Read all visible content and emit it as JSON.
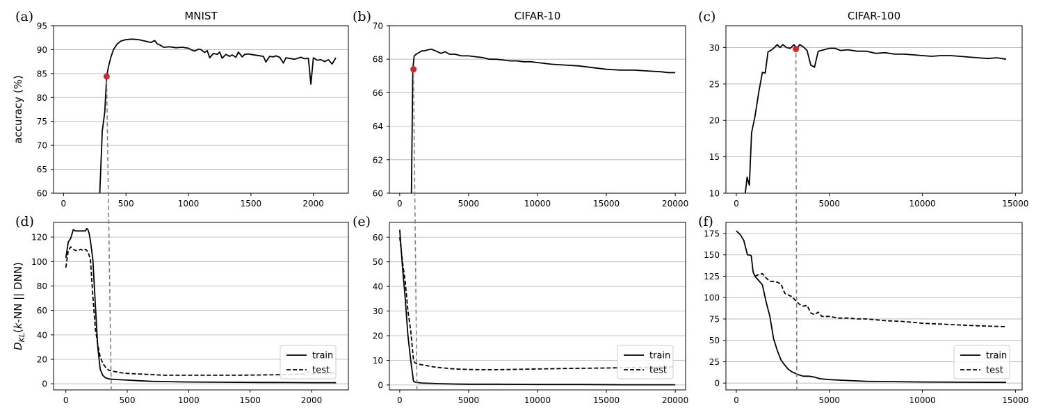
{
  "chart_data": [
    {
      "id": "a",
      "panel_label": "(a)",
      "type": "line",
      "title": "MNIST",
      "xlabel": "",
      "ylabel": "accuracy (%)",
      "xlim": [
        -80,
        2280
      ],
      "ylim": [
        60,
        95
      ],
      "xticks": [
        0,
        500,
        1000,
        1500,
        2000
      ],
      "yticks": [
        60,
        65,
        70,
        75,
        80,
        85,
        90,
        95
      ],
      "grid": "y",
      "series": [
        {
          "name": "accuracy",
          "style": "solid",
          "x": [
            290,
            310,
            330,
            345,
            360,
            380,
            400,
            430,
            460,
            500,
            550,
            600,
            650,
            700,
            730,
            750,
            770,
            800,
            850,
            900,
            950,
            1000,
            1020,
            1050,
            1080,
            1100,
            1130,
            1150,
            1170,
            1200,
            1230,
            1250,
            1270,
            1300,
            1330,
            1350,
            1380,
            1400,
            1430,
            1450,
            1480,
            1500,
            1550,
            1600,
            1620,
            1650,
            1680,
            1700,
            1730,
            1760,
            1780,
            1800,
            1850,
            1900,
            1930,
            1960,
            1980,
            2000,
            2030,
            2060,
            2090,
            2120,
            2150,
            2180
          ],
          "y": [
            60,
            73,
            77,
            84.4,
            86.5,
            88.5,
            90,
            91.2,
            91.8,
            92.1,
            92.2,
            92.1,
            91.8,
            91.5,
            91.9,
            91.2,
            91.0,
            90.5,
            90.6,
            90.4,
            90.5,
            90.3,
            90.0,
            89.7,
            90.1,
            90.0,
            89.4,
            89.8,
            88.3,
            89.2,
            89.0,
            89.5,
            88.2,
            89.0,
            88.6,
            88.9,
            88.4,
            89.5,
            88.5,
            89.0,
            89.1,
            89.0,
            88.8,
            88.6,
            87.4,
            88.6,
            88.5,
            88.7,
            88.4,
            87.2,
            88.3,
            88.2,
            88.0,
            88.4,
            88.1,
            88.2,
            82.8,
            88.3,
            87.8,
            87.9,
            87.5,
            87.9,
            87.0,
            88.3
          ]
        }
      ],
      "marker": {
        "x": 345,
        "y": 84.4,
        "color": "#d62728"
      },
      "vline_x": 350
    },
    {
      "id": "b",
      "panel_label": "(b)",
      "type": "line",
      "title": "CIFAR-10",
      "xlabel": "",
      "ylabel": "",
      "xlim": [
        -750,
        20750
      ],
      "ylim": [
        60,
        70
      ],
      "xticks": [
        0,
        5000,
        10000,
        15000,
        20000
      ],
      "yticks": [
        60,
        62,
        64,
        66,
        68,
        70
      ],
      "grid": "y",
      "series": [
        {
          "name": "accuracy",
          "style": "solid",
          "x": [
            850,
            950,
            1050,
            1200,
            1400,
            1600,
            1800,
            2000,
            2300,
            2600,
            3000,
            3300,
            3600,
            4000,
            4500,
            5000,
            5500,
            6000,
            6500,
            7000,
            7500,
            8000,
            8500,
            9000,
            9500,
            10000,
            11000,
            12000,
            13000,
            14000,
            15000,
            16000,
            17000,
            18000,
            19000,
            19500,
            20000
          ],
          "y": [
            60,
            67.4,
            68.2,
            68.3,
            68.4,
            68.5,
            68.5,
            68.55,
            68.6,
            68.5,
            68.35,
            68.45,
            68.3,
            68.3,
            68.2,
            68.2,
            68.15,
            68.1,
            68.0,
            68.0,
            67.95,
            67.9,
            67.9,
            67.85,
            67.85,
            67.8,
            67.7,
            67.65,
            67.6,
            67.5,
            67.4,
            67.35,
            67.35,
            67.3,
            67.25,
            67.2,
            67.2
          ]
        }
      ],
      "marker": {
        "x": 1000,
        "y": 67.4,
        "color": "#d62728"
      },
      "vline_x": 1250
    },
    {
      "id": "c",
      "panel_label": "(c)",
      "type": "line",
      "title": "CIFAR-100",
      "xlabel": "",
      "ylabel": "",
      "xlim": [
        -560,
        15360
      ],
      "ylim": [
        10,
        33
      ],
      "xticks": [
        0,
        5000,
        10000,
        15000
      ],
      "yticks": [
        10,
        15,
        20,
        25,
        30
      ],
      "grid": "y",
      "series": [
        {
          "name": "accuracy",
          "style": "solid",
          "x": [
            480,
            580,
            700,
            820,
            1000,
            1200,
            1400,
            1550,
            1700,
            1850,
            2000,
            2200,
            2350,
            2500,
            2700,
            2900,
            3100,
            3250,
            3400,
            3600,
            3800,
            4000,
            4200,
            4400,
            4700,
            5000,
            5300,
            5600,
            6000,
            6500,
            7000,
            7500,
            8000,
            8500,
            9000,
            9500,
            10000,
            10500,
            11000,
            11500,
            12000,
            12500,
            13000,
            13500,
            14000,
            14500
          ],
          "y": [
            10,
            12.2,
            11.1,
            18.3,
            20.5,
            23.8,
            26.6,
            26.5,
            29.4,
            29.6,
            29.9,
            30.4,
            30.0,
            30.4,
            30.0,
            29.9,
            30.4,
            29.8,
            30.4,
            30.1,
            29.6,
            27.6,
            27.3,
            29.5,
            29.7,
            29.9,
            29.9,
            29.6,
            29.7,
            29.5,
            29.5,
            29.2,
            29.3,
            29.1,
            29.1,
            29.0,
            28.9,
            28.8,
            28.9,
            28.9,
            28.8,
            28.7,
            28.6,
            28.5,
            28.6,
            28.4
          ]
        }
      ],
      "marker": {
        "x": 3200,
        "y": 29.8,
        "color": "#d62728"
      },
      "vline_x": 3250
    },
    {
      "id": "d",
      "panel_label": "(d)",
      "type": "line",
      "title": "",
      "xlabel": "",
      "ylabel": "D_KL(k-NN || DNN)",
      "ylabel_parts": {
        "d": "D",
        "sub": "KL",
        "open": "(",
        "k": "k",
        "rest": "-NN || DNN)"
      },
      "xlim": [
        -100,
        2300
      ],
      "ylim": [
        -5,
        132
      ],
      "xticks": [
        0,
        500,
        1000,
        1500,
        2000
      ],
      "yticks": [
        0,
        20,
        40,
        60,
        80,
        100,
        120
      ],
      "grid": "y",
      "legend": {
        "position": "lower-right",
        "entries": [
          "train",
          "test"
        ]
      },
      "series": [
        {
          "name": "train",
          "style": "solid",
          "x": [
            0,
            20,
            40,
            60,
            80,
            100,
            120,
            140,
            160,
            170,
            180,
            190,
            200,
            220,
            240,
            260,
            280,
            300,
            320,
            350,
            400,
            500,
            600,
            700,
            800,
            900,
            1000,
            1200,
            1400,
            1600,
            1800,
            2000,
            2200
          ],
          "y": [
            103,
            116,
            119,
            126,
            125,
            125,
            125,
            125,
            125,
            127,
            126,
            123,
            117,
            102,
            65,
            30,
            12,
            7,
            5,
            4,
            3.5,
            3,
            2.5,
            2,
            1.8,
            1.6,
            1.5,
            1.3,
            1.2,
            1.1,
            1.0,
            0.9,
            0.9
          ]
        },
        {
          "name": "test",
          "style": "dashed",
          "x": [
            0,
            20,
            40,
            60,
            80,
            100,
            120,
            140,
            160,
            180,
            200,
            220,
            240,
            260,
            280,
            300,
            320,
            350,
            400,
            450,
            500,
            600,
            700,
            800,
            900,
            1000,
            1100,
            1200,
            1400,
            1600,
            1800,
            1950,
            1980,
            2000,
            2200
          ],
          "y": [
            95,
            109,
            112,
            110,
            109,
            109,
            110,
            109,
            110,
            108,
            102,
            72,
            45,
            32,
            22,
            17,
            14,
            11,
            10,
            9,
            8.5,
            8,
            7.5,
            7,
            7,
            7,
            7,
            7,
            7,
            7.2,
            7.5,
            8,
            10,
            8,
            9
          ]
        }
      ],
      "vline_x": 370
    },
    {
      "id": "e",
      "panel_label": "(e)",
      "type": "line",
      "title": "",
      "xlabel": "",
      "ylabel": "",
      "xlim": [
        -750,
        20750
      ],
      "ylim": [
        -2,
        66
      ],
      "xticks": [
        0,
        5000,
        10000,
        15000,
        20000
      ],
      "yticks": [
        0,
        10,
        20,
        30,
        40,
        50,
        60
      ],
      "grid": "y",
      "legend": {
        "position": "lower-right",
        "entries": [
          "train",
          "test"
        ]
      },
      "series": [
        {
          "name": "train",
          "style": "solid",
          "x": [
            0,
            200,
            400,
            600,
            800,
            1000,
            1100,
            1300,
            1600,
            2000,
            3000,
            4000,
            5000,
            7000,
            10000,
            13000,
            16000,
            18000,
            20000
          ],
          "y": [
            63,
            48,
            35,
            20,
            10,
            1.5,
            1.2,
            1.0,
            0.8,
            0.7,
            0.5,
            0.4,
            0.3,
            0.3,
            0.2,
            0.2,
            0.1,
            0.1,
            0.1
          ]
        },
        {
          "name": "test",
          "style": "dashed",
          "x": [
            0,
            200,
            400,
            600,
            800,
            1000,
            1100,
            1300,
            1600,
            2000,
            2500,
            3000,
            4000,
            5000,
            6000,
            7000,
            8000,
            10000,
            12000,
            15000,
            18000,
            20000
          ],
          "y": [
            60,
            50,
            42,
            30,
            22,
            10,
            9,
            8.5,
            8.2,
            7.8,
            7.3,
            7.0,
            6.5,
            6.3,
            6.2,
            6.2,
            6.3,
            6.5,
            6.7,
            6.9,
            7.2,
            7.4
          ]
        }
      ],
      "vline_x": 1250
    },
    {
      "id": "f",
      "panel_label": "(f)",
      "type": "line",
      "title": "",
      "xlabel": "",
      "ylabel": "",
      "xlim": [
        -560,
        15360
      ],
      "ylim": [
        -8,
        188
      ],
      "xticks": [
        0,
        5000,
        10000,
        15000
      ],
      "yticks": [
        0,
        25,
        50,
        75,
        100,
        125,
        150,
        175
      ],
      "grid": "y",
      "legend": {
        "position": "lower-right",
        "entries": [
          "train",
          "test"
        ]
      },
      "series": [
        {
          "name": "train",
          "style": "solid",
          "x": [
            0,
            200,
            400,
            500,
            600,
            700,
            800,
            900,
            1000,
            1200,
            1400,
            1600,
            1800,
            2000,
            2200,
            2400,
            2600,
            2800,
            3000,
            3300,
            3600,
            3900,
            4200,
            4500,
            5000,
            6000,
            7000,
            8000,
            10000,
            12000,
            14500
          ],
          "y": [
            178,
            174,
            167,
            158,
            150,
            150,
            149,
            130,
            125,
            120,
            115,
            95,
            78,
            52,
            38,
            27,
            21,
            16,
            13,
            10,
            8,
            8,
            7,
            5,
            4,
            3,
            2,
            1.8,
            1.3,
            1.0,
            0.8
          ]
        },
        {
          "name": "test",
          "style": "dashed",
          "x": [
            1000,
            1200,
            1400,
            1600,
            1800,
            2000,
            2200,
            2400,
            2600,
            2800,
            3000,
            3200,
            3400,
            3600,
            3800,
            4000,
            4200,
            4400,
            4600,
            5000,
            5500,
            6000,
            6500,
            7000,
            8000,
            9000,
            10000,
            11000,
            12000,
            13000,
            14500
          ],
          "y": [
            125,
            127,
            128,
            123,
            119,
            119,
            118,
            116,
            105,
            103,
            101,
            96,
            92,
            90,
            91,
            82,
            80,
            83,
            78,
            78,
            76,
            76,
            75,
            75,
            73,
            72,
            70,
            69,
            68,
            67,
            66
          ]
        }
      ],
      "vline_x": 3250
    }
  ]
}
